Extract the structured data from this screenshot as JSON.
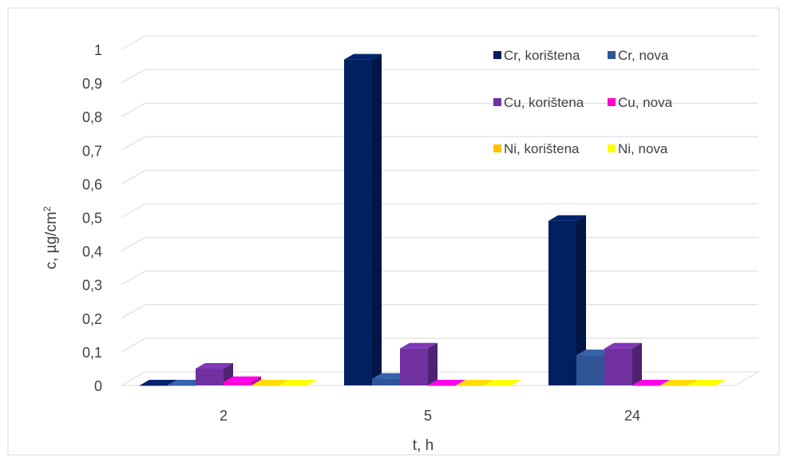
{
  "chart_data": {
    "type": "bar",
    "style": "3d-clustered-column",
    "title": "",
    "xlabel": "t, h",
    "ylabel": "c, µg/cm",
    "ylabel_superscript": "2",
    "ylim": [
      0,
      1
    ],
    "yticks": [
      "0",
      "0,1",
      "0,2",
      "0,3",
      "0,4",
      "0,5",
      "0,6",
      "0,7",
      "0,8",
      "0,9",
      "1"
    ],
    "grid": true,
    "legend_position": "top-right",
    "categories": [
      "2",
      "5",
      "24"
    ],
    "series": [
      {
        "name": "Cr, korištena",
        "color": "#002060",
        "values": [
          0.0,
          0.97,
          0.49
        ]
      },
      {
        "name": "Cr, nova",
        "color": "#2F5597",
        "values": [
          0.0,
          0.02,
          0.09
        ]
      },
      {
        "name": "Cu, korištena",
        "color": "#7030A0",
        "values": [
          0.05,
          0.11,
          0.11
        ]
      },
      {
        "name": "Cu, nova",
        "color": "#FF00CC",
        "values": [
          0.01,
          0.0,
          0.0
        ]
      },
      {
        "name": "Ni, korištena",
        "color": "#FFC000",
        "values": [
          0.0,
          0.0,
          0.0
        ]
      },
      {
        "name": "Ni, nova",
        "color": "#FFFF00",
        "values": [
          0.0,
          0.0,
          0.0
        ]
      }
    ]
  }
}
